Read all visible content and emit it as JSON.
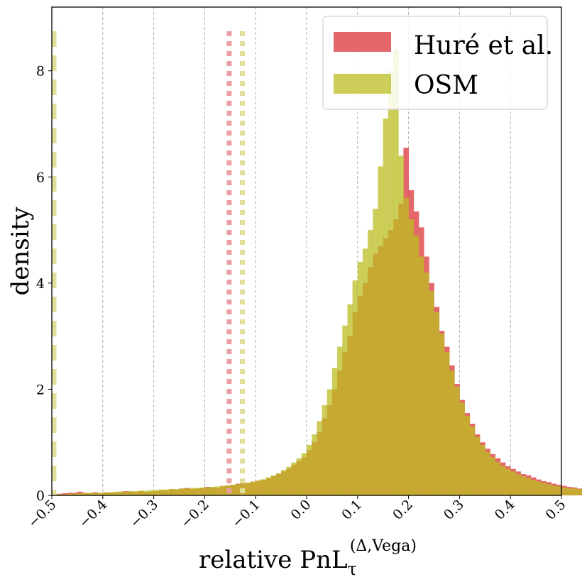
{
  "chart_data": {
    "type": "histogram",
    "xlabel": "relative PnL",
    "xlabel_sub": "τ",
    "xlabel_sup": "(Δ,Vega)",
    "ylabel": "density",
    "xlim": [
      -0.5,
      0.5
    ],
    "ylim": [
      0,
      9.2
    ],
    "xticks": [
      -0.5,
      -0.4,
      -0.3,
      -0.2,
      -0.1,
      0.0,
      0.1,
      0.2,
      0.3,
      0.4,
      0.5
    ],
    "xtick_labels": [
      "−0.5",
      "−0.4",
      "−0.3",
      "−0.2",
      "−0.1",
      "0.0",
      "0.1",
      "0.2",
      "0.3",
      "0.4",
      "0.5"
    ],
    "yticks": [
      0,
      2,
      4,
      6,
      8
    ],
    "ytick_labels": [
      "0",
      "2",
      "4",
      "6",
      "8"
    ],
    "grid": "vertical dashed",
    "legend_position": "top-right",
    "bin_width": 0.01,
    "bin_start": -0.5,
    "series": [
      {
        "name": "Huré et al.",
        "color": "#e15759",
        "values": [
          0.02,
          0.03,
          0.04,
          0.05,
          0.05,
          0.07,
          0.05,
          0.04,
          0.06,
          0.04,
          0.05,
          0.06,
          0.05,
          0.07,
          0.08,
          0.07,
          0.06,
          0.08,
          0.06,
          0.07,
          0.08,
          0.1,
          0.09,
          0.12,
          0.11,
          0.13,
          0.14,
          0.12,
          0.13,
          0.14,
          0.16,
          0.15,
          0.14,
          0.17,
          0.18,
          0.2,
          0.22,
          0.23,
          0.24,
          0.26,
          0.28,
          0.3,
          0.32,
          0.36,
          0.4,
          0.45,
          0.5,
          0.58,
          0.65,
          0.72,
          0.85,
          1.0,
          1.2,
          1.45,
          1.7,
          2.0,
          2.35,
          2.7,
          3.0,
          3.45,
          3.75,
          4.0,
          4.3,
          4.55,
          4.7,
          4.85,
          5.0,
          5.2,
          5.5,
          6.55,
          5.75,
          5.35,
          5.05,
          4.5,
          4.0,
          3.55,
          3.1,
          2.8,
          2.45,
          2.1,
          1.8,
          1.55,
          1.35,
          1.15,
          1.0,
          0.88,
          0.78,
          0.7,
          0.62,
          0.55,
          0.5,
          0.45,
          0.4,
          0.38,
          0.34,
          0.3,
          0.27,
          0.25,
          0.22,
          0.2,
          0.18,
          0.16,
          0.15,
          0.13,
          0.12,
          0.11,
          0.1,
          0.09,
          0.08,
          0.08,
          0.07,
          0.06,
          0.06,
          0.05,
          0.05,
          0.04,
          0.04,
          0.03,
          0.03,
          0.02
        ]
      },
      {
        "name": "OSM",
        "color": "#bcbd22",
        "values": [
          0.01,
          0.02,
          0.02,
          0.03,
          0.03,
          0.04,
          0.04,
          0.05,
          0.05,
          0.05,
          0.06,
          0.06,
          0.07,
          0.07,
          0.07,
          0.08,
          0.08,
          0.09,
          0.09,
          0.1,
          0.1,
          0.11,
          0.11,
          0.12,
          0.12,
          0.13,
          0.13,
          0.14,
          0.14,
          0.15,
          0.15,
          0.16,
          0.17,
          0.18,
          0.19,
          0.2,
          0.21,
          0.22,
          0.24,
          0.26,
          0.28,
          0.3,
          0.34,
          0.38,
          0.42,
          0.48,
          0.54,
          0.62,
          0.7,
          0.8,
          0.95,
          1.15,
          1.4,
          1.7,
          2.0,
          2.4,
          2.8,
          3.2,
          3.6,
          4.05,
          4.4,
          4.65,
          5.0,
          5.4,
          6.2,
          7.1,
          8.0,
          8.4,
          6.4,
          5.6,
          5.2,
          4.9,
          4.5,
          4.2,
          3.85,
          3.45,
          3.05,
          2.7,
          2.35,
          2.05,
          1.75,
          1.5,
          1.3,
          1.1,
          0.95,
          0.82,
          0.72,
          0.63,
          0.56,
          0.5,
          0.45,
          0.4,
          0.36,
          0.33,
          0.29,
          0.26,
          0.24,
          0.21,
          0.19,
          0.17,
          0.15,
          0.14,
          0.13,
          0.12,
          0.11,
          0.1,
          0.09,
          0.08,
          0.08,
          0.07,
          0.06,
          0.06,
          0.05,
          0.05,
          0.04,
          0.04,
          0.03,
          0.03,
          0.03,
          0.02
        ]
      }
    ],
    "vlines": [
      {
        "x": -0.5,
        "style": "dashed",
        "color": "#e0e09a"
      },
      {
        "x": -0.152,
        "style": "dotted",
        "color": "#eaa0a4"
      },
      {
        "x": -0.126,
        "style": "dotted",
        "color": "#e0e09a"
      }
    ]
  }
}
